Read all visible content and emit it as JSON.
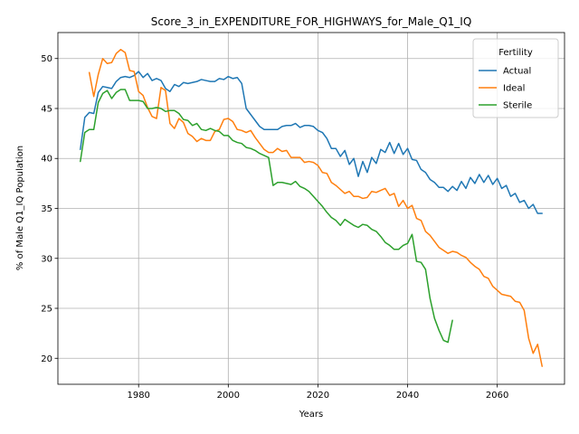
{
  "chart_data": {
    "type": "line",
    "title": "Score_3_in_EXPENDITURE_FOR_HIGHWAYS_for_Male_Q1_IQ",
    "xlabel": "Years",
    "ylabel": "% of Male Q1_IQ Population",
    "xlim": [
      1962,
      2075
    ],
    "ylim": [
      17.4,
      52.6
    ],
    "xticks": [
      1980,
      2000,
      2020,
      2040,
      2060
    ],
    "yticks": [
      20,
      25,
      30,
      35,
      40,
      45,
      50
    ],
    "grid": true,
    "legend": {
      "title": "Fertility",
      "position": "top-right"
    },
    "colors": {
      "Actual": "#1f77b4",
      "Ideal": "#ff7f0e",
      "Sterile": "#2ca02c"
    },
    "series": [
      {
        "name": "Actual",
        "x": [
          1967,
          1968,
          1969,
          1970,
          1971,
          1972,
          1973,
          1974,
          1975,
          1976,
          1977,
          1978,
          1979,
          1980,
          1981,
          1982,
          1983,
          1984,
          1985,
          1986,
          1987,
          1988,
          1989,
          1990,
          1991,
          1992,
          1993,
          1994,
          1995,
          1996,
          1997,
          1998,
          1999,
          2000,
          2001,
          2002,
          2003,
          2004,
          2005,
          2006,
          2007,
          2008,
          2009,
          2010,
          2011,
          2012,
          2013,
          2014,
          2015,
          2016,
          2017,
          2018,
          2019,
          2020,
          2021,
          2022,
          2023,
          2024,
          2025,
          2026,
          2027,
          2028,
          2029,
          2030,
          2031,
          2032,
          2033,
          2034,
          2035,
          2036,
          2037,
          2038,
          2039,
          2040,
          2041,
          2042,
          2043,
          2044,
          2045,
          2046,
          2047,
          2048,
          2049,
          2050,
          2051,
          2052,
          2053,
          2054,
          2055,
          2056,
          2057,
          2058,
          2059,
          2060,
          2061,
          2062,
          2063,
          2064,
          2065,
          2066,
          2067,
          2068,
          2069,
          2070
        ],
        "y": [
          40.9,
          44.1,
          44.6,
          44.5,
          46.6,
          47.2,
          47.1,
          47.0,
          47.7,
          48.1,
          48.2,
          48.1,
          48.3,
          48.7,
          48.1,
          48.5,
          47.8,
          48.0,
          47.8,
          47.0,
          46.7,
          47.4,
          47.2,
          47.6,
          47.5,
          47.6,
          47.7,
          47.9,
          47.8,
          47.7,
          47.7,
          48.0,
          47.9,
          48.2,
          48.0,
          48.1,
          47.5,
          45.0,
          44.4,
          43.8,
          43.2,
          42.9,
          42.9,
          42.9,
          42.9,
          43.2,
          43.3,
          43.3,
          43.5,
          43.1,
          43.3,
          43.3,
          43.2,
          42.8,
          42.6,
          42.0,
          41.0,
          41.0,
          40.2,
          40.8,
          39.4,
          40.0,
          38.2,
          39.7,
          38.6,
          40.1,
          39.5,
          40.9,
          40.6,
          41.6,
          40.5,
          41.5,
          40.4,
          41.0,
          39.9,
          39.8,
          38.9,
          38.6,
          37.9,
          37.6,
          37.1,
          37.1,
          36.7,
          37.2,
          36.8,
          37.7,
          37.0,
          38.1,
          37.5,
          38.4,
          37.6,
          38.3,
          37.4,
          38.0,
          37.0,
          37.3,
          36.2,
          36.5,
          35.6,
          35.8,
          35.0,
          35.4,
          34.5,
          34.5
        ]
      },
      {
        "name": "Ideal",
        "x": [
          1969,
          1970,
          1971,
          1972,
          1973,
          1974,
          1975,
          1976,
          1977,
          1978,
          1979,
          1980,
          1981,
          1982,
          1983,
          1984,
          1985,
          1986,
          1987,
          1988,
          1989,
          1990,
          1991,
          1992,
          1993,
          1994,
          1995,
          1996,
          1997,
          1998,
          1999,
          2000,
          2001,
          2002,
          2003,
          2004,
          2005,
          2006,
          2007,
          2008,
          2009,
          2010,
          2011,
          2012,
          2013,
          2014,
          2015,
          2016,
          2017,
          2018,
          2019,
          2020,
          2021,
          2022,
          2023,
          2024,
          2025,
          2026,
          2027,
          2028,
          2029,
          2030,
          2031,
          2032,
          2033,
          2034,
          2035,
          2036,
          2037,
          2038,
          2039,
          2040,
          2041,
          2042,
          2043,
          2044,
          2045,
          2046,
          2047,
          2048,
          2049,
          2050,
          2051,
          2052,
          2053,
          2054,
          2055,
          2056,
          2057,
          2058,
          2059,
          2060,
          2061,
          2062,
          2063,
          2064,
          2065,
          2066,
          2067,
          2068,
          2069,
          2070
        ],
        "y": [
          48.6,
          46.2,
          48.4,
          50.0,
          49.5,
          49.6,
          50.5,
          50.9,
          50.6,
          48.8,
          48.7,
          46.7,
          46.3,
          45.1,
          44.2,
          44.0,
          47.1,
          46.8,
          43.5,
          43.0,
          44.0,
          43.6,
          42.5,
          42.2,
          41.7,
          42.0,
          41.8,
          41.8,
          42.7,
          42.9,
          43.9,
          44.0,
          43.7,
          42.9,
          42.8,
          42.6,
          42.8,
          42.1,
          41.5,
          40.9,
          40.6,
          40.6,
          41.0,
          40.7,
          40.8,
          40.1,
          40.1,
          40.1,
          39.6,
          39.7,
          39.6,
          39.3,
          38.6,
          38.5,
          37.6,
          37.3,
          36.9,
          36.5,
          36.7,
          36.2,
          36.2,
          36.0,
          36.1,
          36.7,
          36.6,
          36.8,
          37.0,
          36.3,
          36.5,
          35.2,
          35.8,
          35.0,
          35.3,
          34.0,
          33.8,
          32.7,
          32.3,
          31.7,
          31.1,
          30.8,
          30.5,
          30.7,
          30.6,
          30.3,
          30.1,
          29.6,
          29.2,
          28.9,
          28.2,
          28.0,
          27.2,
          26.8,
          26.4,
          26.3,
          26.2,
          25.7,
          25.6,
          24.8,
          22.0,
          20.5,
          21.4,
          19.2
        ]
      },
      {
        "name": "Sterile",
        "x": [
          1967,
          1968,
          1969,
          1970,
          1971,
          1972,
          1973,
          1974,
          1975,
          1976,
          1977,
          1978,
          1979,
          1980,
          1981,
          1982,
          1983,
          1984,
          1985,
          1986,
          1987,
          1988,
          1989,
          1990,
          1991,
          1992,
          1993,
          1994,
          1995,
          1996,
          1997,
          1998,
          1999,
          2000,
          2001,
          2002,
          2003,
          2004,
          2005,
          2006,
          2007,
          2008,
          2009,
          2010,
          2011,
          2012,
          2013,
          2014,
          2015,
          2016,
          2017,
          2018,
          2019,
          2020,
          2021,
          2022,
          2023,
          2024,
          2025,
          2026,
          2027,
          2028,
          2029,
          2030,
          2031,
          2032,
          2033,
          2034,
          2035,
          2036,
          2037,
          2038,
          2039,
          2040,
          2041,
          2042,
          2043,
          2044,
          2045,
          2046,
          2047,
          2048,
          2049,
          2050,
          2051
        ],
        "y": [
          39.7,
          42.6,
          42.9,
          42.9,
          45.6,
          46.5,
          46.8,
          46.0,
          46.6,
          46.9,
          46.9,
          45.8,
          45.8,
          45.8,
          45.7,
          45.0,
          45.0,
          45.1,
          45.0,
          44.7,
          44.8,
          44.8,
          44.5,
          43.9,
          43.8,
          43.3,
          43.5,
          42.9,
          42.8,
          43.0,
          42.8,
          42.7,
          42.3,
          42.3,
          41.8,
          41.6,
          41.5,
          41.1,
          41.0,
          40.8,
          40.5,
          40.3,
          40.1,
          37.3,
          37.6,
          37.6,
          37.5,
          37.4,
          37.7,
          37.2,
          37.0,
          36.7,
          36.2,
          35.7,
          35.2,
          34.6,
          34.1,
          33.8,
          33.3,
          33.9,
          33.6,
          33.3,
          33.1,
          33.4,
          33.3,
          32.9,
          32.7,
          32.2,
          31.6,
          31.3,
          30.9,
          30.9,
          31.3,
          31.5,
          32.4,
          29.7,
          29.6,
          28.9,
          26.0,
          24.0,
          22.8,
          21.8,
          21.6,
          23.8,
          null
        ],
        "note": null
      }
    ]
  }
}
